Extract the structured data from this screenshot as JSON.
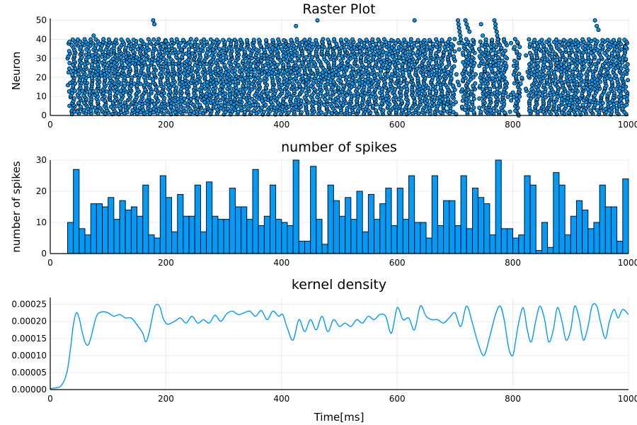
{
  "colors": {
    "series": "#009AF9",
    "edge": "#000000",
    "background": "#FFFFFF"
  },
  "chart_data": [
    {
      "type": "scatter",
      "title": "Raster Plot",
      "xlabel": "",
      "ylabel": "Neuron",
      "xlim": [
        0,
        1000
      ],
      "ylim": [
        0,
        51
      ],
      "xticks": [
        "0",
        "200",
        "400",
        "600",
        "800",
        "1000"
      ],
      "yticks": [
        "0",
        "10",
        "20",
        "30",
        "40",
        "50"
      ],
      "grid": true,
      "legend": "none",
      "points_approx": {
        "neurons": [
          1,
          40
        ],
        "time_range": [
          30,
          1000
        ],
        "pattern": "each neuron fires roughly every 10 ms with a neuron-dependent phase, producing diagonal waves; a few high-index neurons (41-50) fire in short bursts",
        "extra_points": [
          [
            42,
            2
          ],
          [
            47,
            2
          ],
          [
            75,
            42
          ],
          [
            178,
            50
          ],
          [
            180,
            48
          ],
          [
            200,
            39
          ],
          [
            425,
            47
          ],
          [
            462,
            50
          ],
          [
            630,
            50
          ],
          [
            705,
            50
          ],
          [
            706,
            48
          ],
          [
            707,
            46
          ],
          [
            708,
            44
          ],
          [
            709,
            42
          ],
          [
            710,
            40
          ],
          [
            712,
            38
          ],
          [
            718,
            50
          ],
          [
            720,
            48
          ],
          [
            722,
            46
          ],
          [
            725,
            44
          ],
          [
            745,
            48
          ],
          [
            748,
            42
          ],
          [
            768,
            50
          ],
          [
            770,
            48
          ],
          [
            770,
            46
          ],
          [
            772,
            44
          ],
          [
            773,
            42
          ],
          [
            774,
            40
          ],
          [
            810,
            0
          ],
          [
            942,
            50
          ],
          [
            945,
            47
          ],
          [
            948,
            45
          ],
          [
            995,
            36
          ]
        ]
      }
    },
    {
      "type": "bar",
      "title": "number of spikes",
      "xlabel": "",
      "ylabel": "number of spikes",
      "xlim": [
        0,
        1000
      ],
      "ylim": [
        0,
        30
      ],
      "xticks": [
        "0",
        "200",
        "400",
        "600",
        "800",
        "1000"
      ],
      "yticks": [
        "0",
        "10",
        "20",
        "30"
      ],
      "bin_start": 30,
      "bin_width": 10,
      "values": [
        10,
        27,
        8,
        6,
        16,
        16,
        15,
        18,
        11,
        17,
        14,
        15,
        12,
        22,
        6,
        5,
        25,
        18,
        7,
        19,
        12,
        12,
        22,
        7,
        23,
        12,
        11,
        11,
        21,
        15,
        15,
        11,
        27,
        9,
        12,
        22,
        11,
        10,
        9,
        30,
        4,
        4,
        28,
        11,
        3,
        22,
        17,
        12,
        18,
        11,
        20,
        7,
        19,
        11,
        16,
        21,
        9,
        21,
        11,
        25,
        10,
        10,
        5,
        25,
        9,
        17,
        17,
        9,
        25,
        8,
        21,
        18,
        16,
        6,
        30,
        8,
        8,
        5,
        6,
        25,
        22,
        1,
        10,
        2,
        26,
        22,
        6,
        12,
        17,
        14,
        8,
        10,
        22,
        15,
        15,
        4,
        24,
        21,
        4,
        11,
        20,
        17
      ],
      "grid": true,
      "legend": "none"
    },
    {
      "type": "line",
      "title": "kernel density",
      "xlabel": "Time[ms]",
      "ylabel": "",
      "xlim": [
        0,
        1000
      ],
      "ylim": [
        0,
        0.00027
      ],
      "xticks": [
        "0",
        "200",
        "400",
        "600",
        "800",
        "1000"
      ],
      "yticks": [
        "0.00000",
        "0.00005",
        "0.00010",
        "0.00015",
        "0.00020",
        "0.00025"
      ],
      "grid": true,
      "legend": "none",
      "x": [
        0,
        10,
        18,
        25,
        30,
        35,
        40,
        45,
        50,
        55,
        60,
        65,
        70,
        80,
        90,
        100,
        110,
        120,
        130,
        140,
        150,
        160,
        165,
        170,
        175,
        180,
        185,
        190,
        195,
        200,
        205,
        215,
        225,
        235,
        245,
        255,
        265,
        275,
        285,
        295,
        305,
        315,
        325,
        335,
        345,
        355,
        365,
        375,
        385,
        395,
        402,
        410,
        420,
        430,
        440,
        450,
        460,
        470,
        480,
        490,
        500,
        510,
        520,
        530,
        540,
        550,
        560,
        570,
        580,
        590,
        600,
        610,
        620,
        630,
        640,
        650,
        660,
        670,
        680,
        690,
        700,
        710,
        720,
        730,
        740,
        750,
        760,
        770,
        778,
        785,
        793,
        800,
        805,
        810,
        818,
        825,
        832,
        840,
        847,
        855,
        862,
        870,
        877,
        885,
        892,
        900,
        907,
        915,
        922,
        930,
        937,
        945,
        952,
        960,
        967,
        975,
        982,
        990,
        1000
      ],
      "y": [
        3e-06,
        5e-06,
        1e-05,
        3e-05,
        6e-05,
        0.00012,
        0.00019,
        0.000225,
        0.00021,
        0.00017,
        0.00014,
        0.00013,
        0.00015,
        0.000215,
        0.000228,
        0.000225,
        0.000215,
        0.00022,
        0.00021,
        0.00021,
        0.00019,
        0.000165,
        0.00014,
        0.00016,
        0.0002,
        0.00024,
        0.00025,
        0.00024,
        0.00021,
        0.000195,
        0.000192,
        0.0002,
        0.00021,
        0.000195,
        0.000215,
        0.000195,
        0.000205,
        0.000195,
        0.000218,
        0.0002,
        0.000222,
        0.00023,
        0.00022,
        0.000225,
        0.00023,
        0.000215,
        0.000232,
        0.000205,
        0.00023,
        0.000215,
        0.00022,
        0.00018,
        0.000145,
        0.000205,
        0.00017,
        0.000205,
        0.000175,
        0.000215,
        0.00017,
        0.000205,
        0.000185,
        0.000195,
        0.000185,
        0.000205,
        0.000195,
        0.000215,
        0.000205,
        0.00022,
        0.000215,
        0.000165,
        0.00024,
        0.000205,
        0.00021,
        0.000175,
        0.000245,
        0.000215,
        0.000205,
        0.000205,
        0.000195,
        0.00021,
        0.000225,
        0.000185,
        0.000245,
        0.000195,
        0.000135,
        0.0001,
        0.000155,
        0.00022,
        0.000245,
        0.000205,
        0.00012,
        0.0001,
        0.000145,
        0.000195,
        0.00024,
        0.000175,
        0.00014,
        0.000205,
        0.000245,
        0.000205,
        0.00014,
        0.000175,
        0.00024,
        0.0002,
        0.000145,
        0.000175,
        0.000245,
        0.000205,
        0.000145,
        0.000185,
        0.000245,
        0.000245,
        0.000195,
        0.00015,
        0.0002,
        0.000235,
        0.00021,
        0.000235,
        0.00022
      ]
    }
  ]
}
